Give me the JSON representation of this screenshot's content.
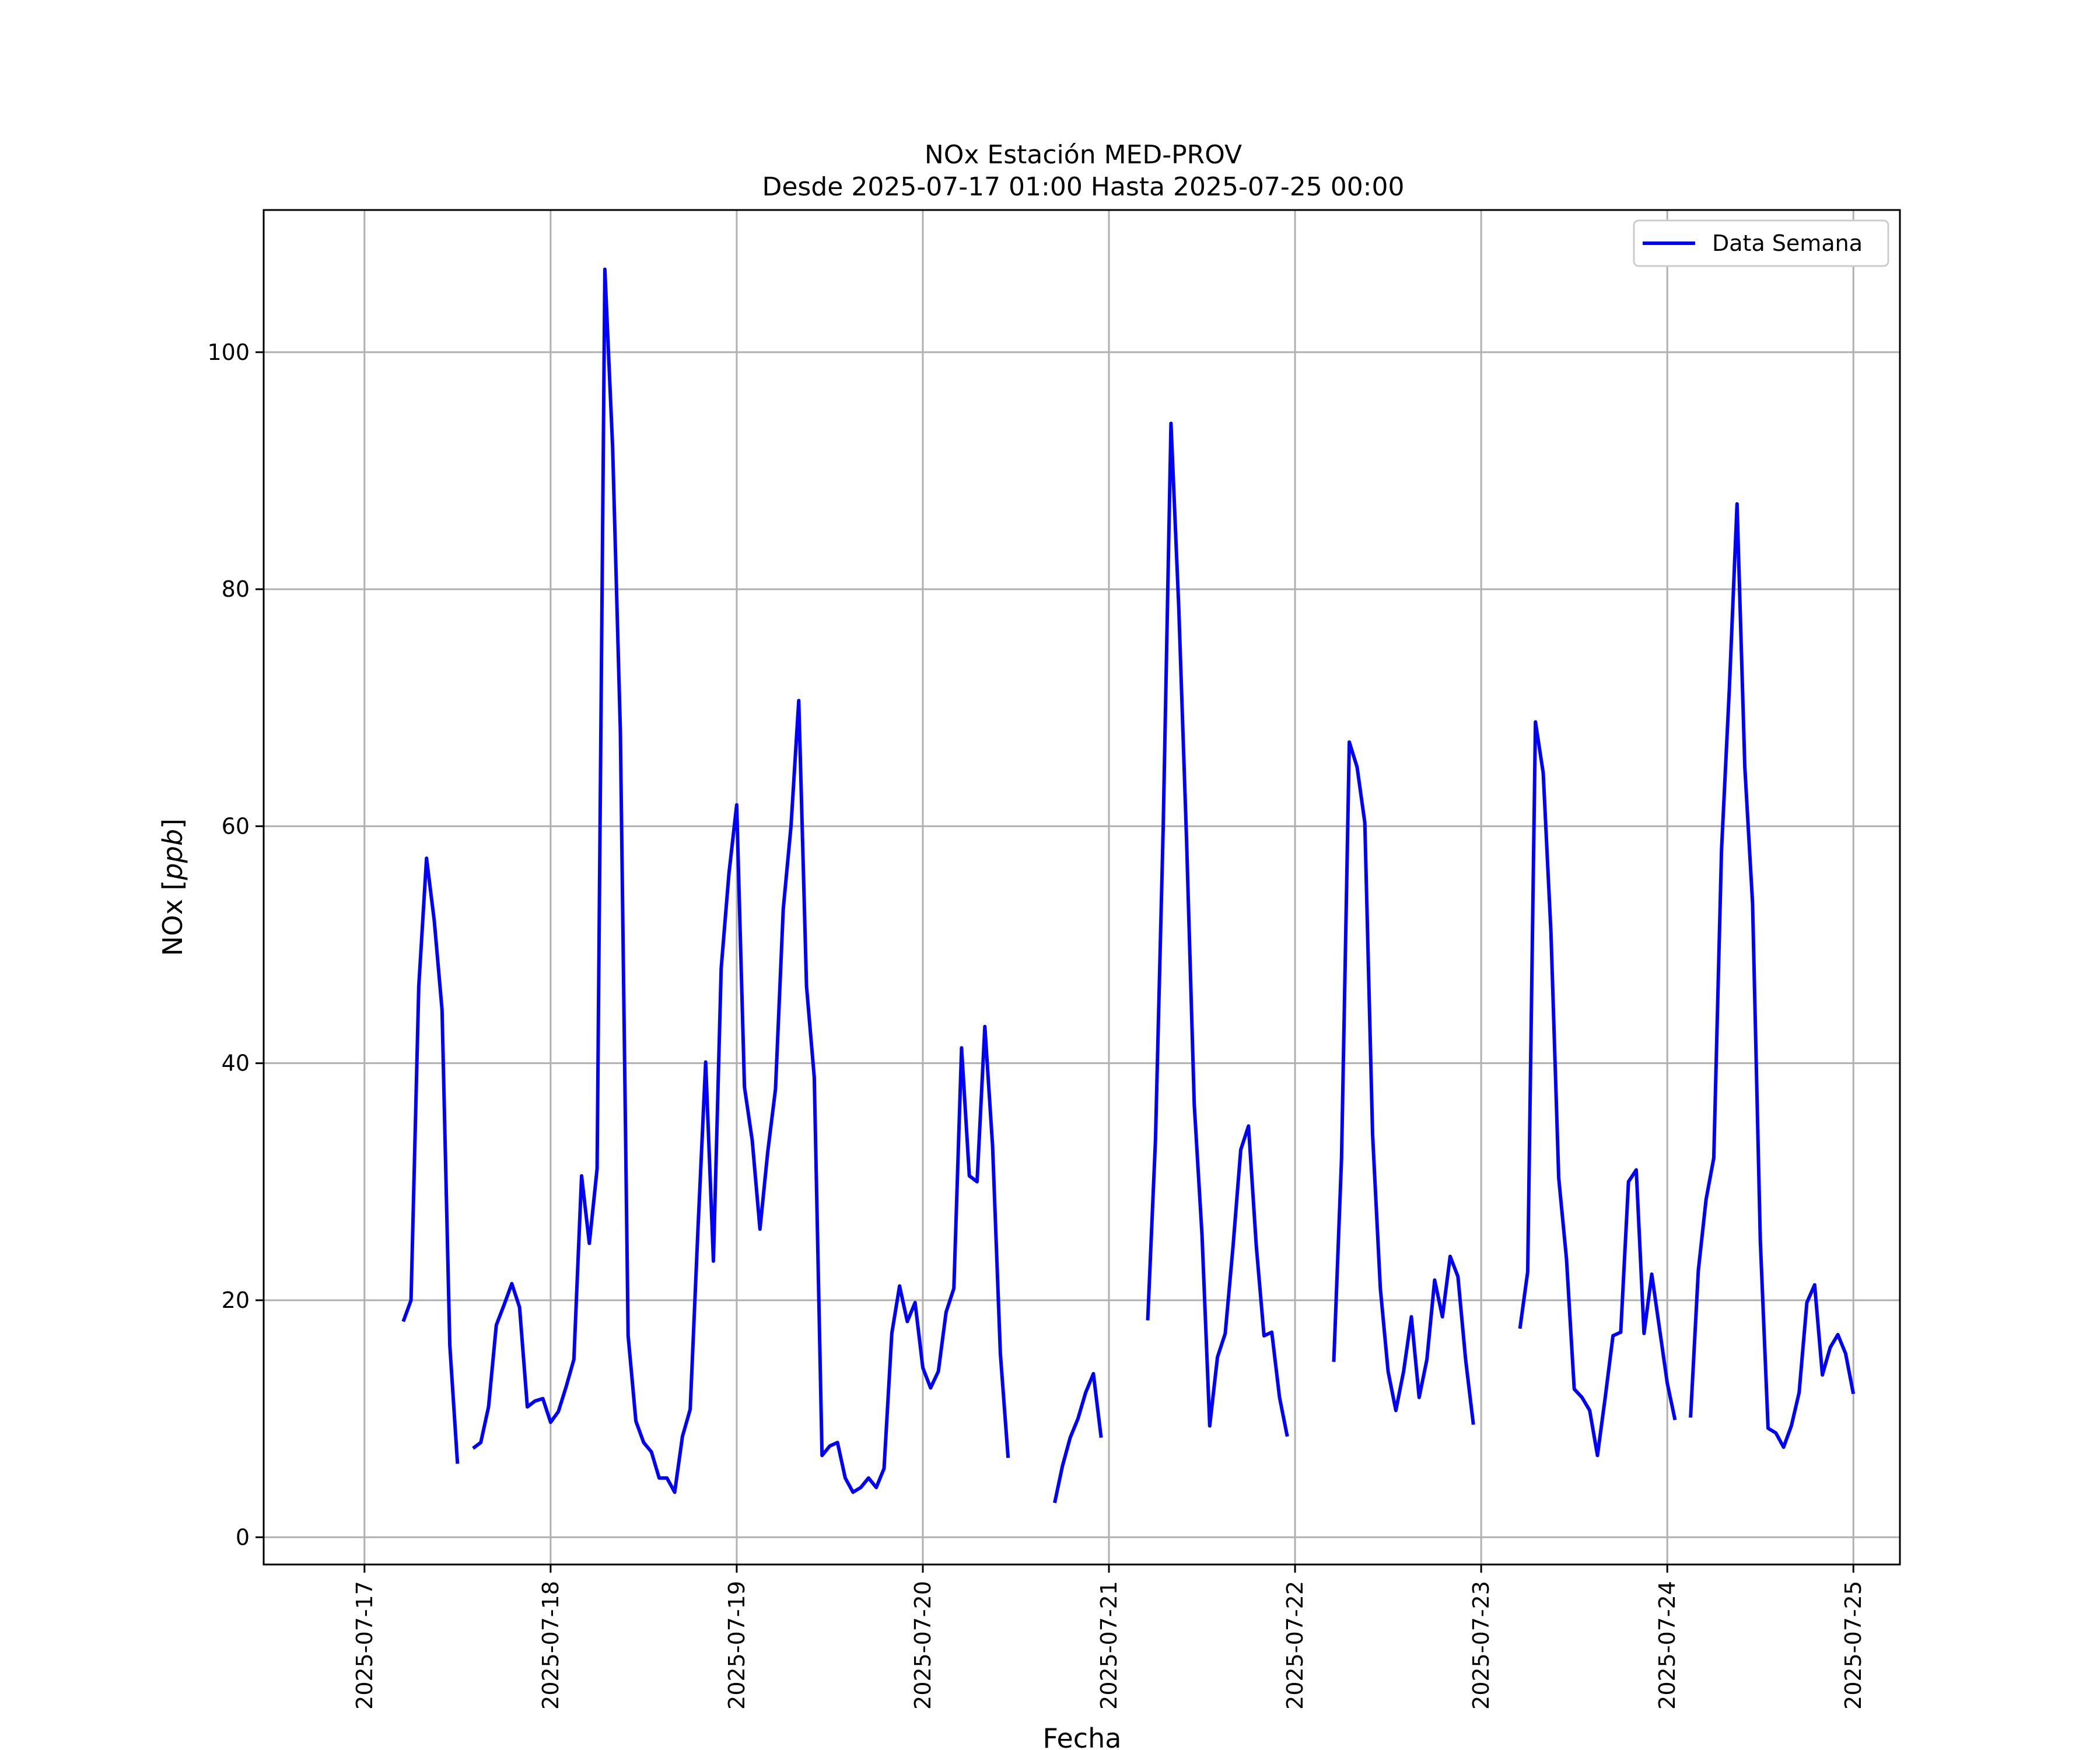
{
  "chart_data": {
    "type": "line",
    "title_line1": "NOx Estación MED-PROV",
    "title_line2": "Desde 2025-07-17 01:00 Hasta 2025-07-25 00:00",
    "xlabel": "Fecha",
    "ylabel_prefix": "NOx [",
    "ylabel_unit": "ppb",
    "ylabel_suffix": "]",
    "x_ticks": [
      "2025-07-17",
      "2025-07-18",
      "2025-07-19",
      "2025-07-20",
      "2025-07-21",
      "2025-07-22",
      "2025-07-23",
      "2025-07-24",
      "2025-07-25"
    ],
    "y_ticks": [
      0,
      20,
      40,
      60,
      80,
      100
    ],
    "xlim": [
      "2025-07-16 11:00",
      "2025-07-25 06:00"
    ],
    "ylim": [
      -2.3,
      112
    ],
    "grid": true,
    "legend_position": "upper right",
    "series": [
      {
        "name": "Data Semana",
        "color": "#0000ff",
        "segments": [
          [
            [
              "2025-07-17 05:00",
              18.2
            ],
            [
              "2025-07-17 06:00",
              20.0
            ],
            [
              "2025-07-17 07:00",
              46.5
            ],
            [
              "2025-07-17 08:00",
              57.3
            ],
            [
              "2025-07-17 09:00",
              52.0
            ],
            [
              "2025-07-17 10:00",
              44.5
            ],
            [
              "2025-07-17 11:00",
              16.2
            ],
            [
              "2025-07-17 12:00",
              6.2
            ]
          ],
          [
            [
              "2025-07-17 14:00",
              7.5
            ],
            [
              "2025-07-17 15:00",
              8.0
            ],
            [
              "2025-07-17 16:00",
              11.0
            ],
            [
              "2025-07-17 17:00",
              17.9
            ],
            [
              "2025-07-17 18:00",
              19.6
            ],
            [
              "2025-07-17 19:00",
              21.4
            ],
            [
              "2025-07-17 20:00",
              19.4
            ],
            [
              "2025-07-17 21:00",
              11.0
            ],
            [
              "2025-07-17 22:00",
              11.5
            ],
            [
              "2025-07-17 23:00",
              11.7
            ],
            [
              "2025-07-18 00:00",
              9.7
            ],
            [
              "2025-07-18 01:00",
              10.6
            ],
            [
              "2025-07-18 02:00",
              12.7
            ],
            [
              "2025-07-18 03:00",
              15.0
            ],
            [
              "2025-07-18 04:00",
              30.5
            ],
            [
              "2025-07-18 05:00",
              24.8
            ],
            [
              "2025-07-18 06:00",
              31.1
            ],
            [
              "2025-07-18 07:00",
              107.0
            ],
            [
              "2025-07-18 08:00",
              92.0
            ],
            [
              "2025-07-18 09:00",
              68.0
            ],
            [
              "2025-07-18 10:00",
              17.0
            ],
            [
              "2025-07-18 11:00",
              9.8
            ],
            [
              "2025-07-18 12:00",
              8.0
            ],
            [
              "2025-07-18 13:00",
              7.2
            ],
            [
              "2025-07-18 14:00",
              5.0
            ],
            [
              "2025-07-18 15:00",
              5.0
            ],
            [
              "2025-07-18 16:00",
              3.8
            ],
            [
              "2025-07-18 17:00",
              8.5
            ],
            [
              "2025-07-18 18:00",
              10.8
            ],
            [
              "2025-07-18 19:00",
              26.0
            ],
            [
              "2025-07-18 20:00",
              40.1
            ],
            [
              "2025-07-18 21:00",
              23.3
            ],
            [
              "2025-07-18 22:00",
              48.0
            ],
            [
              "2025-07-18 23:00",
              56.0
            ],
            [
              "2025-07-19 00:00",
              61.8
            ],
            [
              "2025-07-19 01:00",
              38.0
            ],
            [
              "2025-07-19 02:00",
              33.5
            ],
            [
              "2025-07-19 03:00",
              26.0
            ],
            [
              "2025-07-19 04:00",
              32.5
            ],
            [
              "2025-07-19 05:00",
              37.8
            ],
            [
              "2025-07-19 06:00",
              53.0
            ],
            [
              "2025-07-19 07:00",
              60.0
            ],
            [
              "2025-07-19 08:00",
              70.6
            ],
            [
              "2025-07-19 09:00",
              46.5
            ],
            [
              "2025-07-19 10:00",
              38.8
            ],
            [
              "2025-07-19 11:00",
              6.9
            ],
            [
              "2025-07-19 12:00",
              7.7
            ],
            [
              "2025-07-19 13:00",
              8.0
            ],
            [
              "2025-07-19 14:00",
              5.0
            ],
            [
              "2025-07-19 15:00",
              3.8
            ],
            [
              "2025-07-19 16:00",
              4.2
            ],
            [
              "2025-07-19 17:00",
              5.0
            ],
            [
              "2025-07-19 18:00",
              4.2
            ],
            [
              "2025-07-19 19:00",
              5.8
            ],
            [
              "2025-07-19 20:00",
              17.2
            ],
            [
              "2025-07-19 21:00",
              21.2
            ],
            [
              "2025-07-19 22:00",
              18.2
            ],
            [
              "2025-07-19 23:00",
              19.8
            ],
            [
              "2025-07-20 00:00",
              14.3
            ],
            [
              "2025-07-20 01:00",
              12.6
            ],
            [
              "2025-07-20 02:00",
              14.0
            ],
            [
              "2025-07-20 03:00",
              19.0
            ],
            [
              "2025-07-20 04:00",
              21.0
            ],
            [
              "2025-07-20 05:00",
              41.3
            ],
            [
              "2025-07-20 06:00",
              30.5
            ],
            [
              "2025-07-20 07:00",
              30.0
            ],
            [
              "2025-07-20 08:00",
              43.1
            ],
            [
              "2025-07-20 09:00",
              33.0
            ],
            [
              "2025-07-20 10:00",
              15.5
            ],
            [
              "2025-07-20 11:00",
              6.7
            ]
          ],
          [
            [
              "2025-07-20 17:00",
              2.9
            ],
            [
              "2025-07-20 18:00",
              6.0
            ],
            [
              "2025-07-20 19:00",
              8.4
            ],
            [
              "2025-07-20 20:00",
              10.0
            ],
            [
              "2025-07-20 21:00",
              12.2
            ],
            [
              "2025-07-20 22:00",
              13.8
            ],
            [
              "2025-07-20 23:00",
              8.4
            ]
          ],
          [
            [
              "2025-07-21 05:00",
              18.3
            ],
            [
              "2025-07-21 06:00",
              33.5
            ],
            [
              "2025-07-21 07:00",
              60.0
            ],
            [
              "2025-07-21 08:00",
              94.0
            ],
            [
              "2025-07-21 09:00",
              78.5
            ],
            [
              "2025-07-21 10:00",
              59.0
            ],
            [
              "2025-07-21 11:00",
              36.5
            ],
            [
              "2025-07-21 12:00",
              25.5
            ],
            [
              "2025-07-21 13:00",
              9.4
            ],
            [
              "2025-07-21 14:00",
              15.2
            ],
            [
              "2025-07-21 15:00",
              17.2
            ],
            [
              "2025-07-21 16:00",
              24.5
            ],
            [
              "2025-07-21 17:00",
              32.7
            ],
            [
              "2025-07-21 18:00",
              34.7
            ],
            [
              "2025-07-21 19:00",
              24.6
            ],
            [
              "2025-07-21 20:00",
              17.0
            ],
            [
              "2025-07-21 21:00",
              17.3
            ],
            [
              "2025-07-21 22:00",
              11.8
            ],
            [
              "2025-07-21 23:00",
              8.5
            ]
          ],
          [
            [
              "2025-07-22 05:00",
              14.8
            ],
            [
              "2025-07-22 06:00",
              32.0
            ],
            [
              "2025-07-22 07:00",
              67.1
            ],
            [
              "2025-07-22 08:00",
              65.0
            ],
            [
              "2025-07-22 09:00",
              60.3
            ],
            [
              "2025-07-22 10:00",
              34.0
            ],
            [
              "2025-07-22 11:00",
              21.0
            ],
            [
              "2025-07-22 12:00",
              14.0
            ],
            [
              "2025-07-22 13:00",
              10.7
            ],
            [
              "2025-07-22 14:00",
              14.0
            ],
            [
              "2025-07-22 15:00",
              18.6
            ],
            [
              "2025-07-22 16:00",
              11.8
            ],
            [
              "2025-07-22 17:00",
              15.0
            ],
            [
              "2025-07-22 18:00",
              21.7
            ],
            [
              "2025-07-22 19:00",
              18.6
            ],
            [
              "2025-07-22 20:00",
              23.7
            ],
            [
              "2025-07-22 21:00",
              22.0
            ],
            [
              "2025-07-22 22:00",
              15.0
            ],
            [
              "2025-07-22 23:00",
              9.5
            ]
          ],
          [
            [
              "2025-07-23 05:00",
              17.6
            ],
            [
              "2025-07-23 06:00",
              22.4
            ],
            [
              "2025-07-23 07:00",
              68.8
            ],
            [
              "2025-07-23 08:00",
              64.5
            ],
            [
              "2025-07-23 09:00",
              51.0
            ],
            [
              "2025-07-23 10:00",
              30.3
            ],
            [
              "2025-07-23 11:00",
              23.5
            ],
            [
              "2025-07-23 12:00",
              12.5
            ],
            [
              "2025-07-23 13:00",
              11.8
            ],
            [
              "2025-07-23 14:00",
              10.7
            ],
            [
              "2025-07-23 15:00",
              6.9
            ],
            [
              "2025-07-23 16:00",
              11.8
            ],
            [
              "2025-07-23 17:00",
              17.0
            ],
            [
              "2025-07-23 18:00",
              17.3
            ],
            [
              "2025-07-23 19:00",
              30.0
            ],
            [
              "2025-07-23 20:00",
              31.0
            ],
            [
              "2025-07-23 21:00",
              17.2
            ],
            [
              "2025-07-23 22:00",
              22.2
            ],
            [
              "2025-07-23 23:00",
              17.6
            ],
            [
              "2025-07-24 00:00",
              13.0
            ],
            [
              "2025-07-24 01:00",
              9.9
            ]
          ],
          [
            [
              "2025-07-24 03:00",
              10.1
            ],
            [
              "2025-07-24 04:00",
              22.5
            ],
            [
              "2025-07-24 05:00",
              28.5
            ],
            [
              "2025-07-24 06:00",
              32.0
            ],
            [
              "2025-07-24 07:00",
              58.0
            ],
            [
              "2025-07-24 08:00",
              71.5
            ],
            [
              "2025-07-24 09:00",
              87.2
            ],
            [
              "2025-07-24 10:00",
              65.0
            ],
            [
              "2025-07-24 11:00",
              53.5
            ],
            [
              "2025-07-24 12:00",
              25.0
            ],
            [
              "2025-07-24 13:00",
              9.2
            ],
            [
              "2025-07-24 14:00",
              8.8
            ],
            [
              "2025-07-24 15:00",
              7.6
            ],
            [
              "2025-07-24 16:00",
              9.4
            ],
            [
              "2025-07-24 17:00",
              12.2
            ],
            [
              "2025-07-24 18:00",
              19.8
            ],
            [
              "2025-07-24 19:00",
              21.3
            ],
            [
              "2025-07-24 20:00",
              13.7
            ],
            [
              "2025-07-24 21:00",
              16.0
            ],
            [
              "2025-07-24 22:00",
              17.1
            ],
            [
              "2025-07-24 23:00",
              15.5
            ],
            [
              "2025-07-25 00:00",
              12.1
            ]
          ]
        ]
      }
    ]
  }
}
